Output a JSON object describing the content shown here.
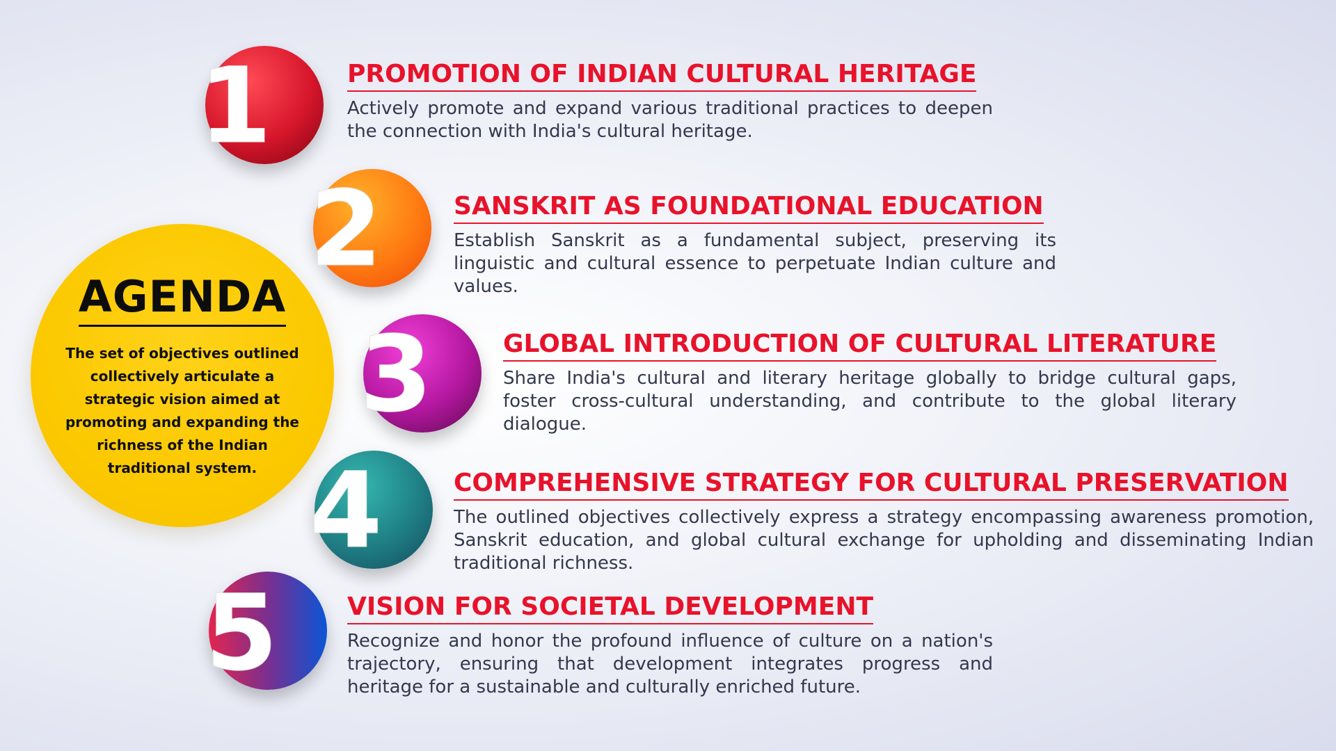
{
  "agenda": {
    "title": "AGENDA",
    "description": "The set of objectives outlined collectively articulate a strategic vision aimed at promoting and expanding the richness of the Indian traditional system."
  },
  "items": [
    {
      "number": "1",
      "heading": "PROMOTION OF INDIAN CULTURAL HERITAGE",
      "body": "Actively promote and expand various traditional practices to deepen the connection with India's cultural heritage.",
      "colors": [
        "#ff4a55",
        "#d6162b",
        "#7e0412"
      ]
    },
    {
      "number": "2",
      "heading": "SANSKRIT AS FOUNDATIONAL EDUCATION",
      "body": "Establish Sanskrit as a fundamental subject, preserving its linguistic and cultural essence to perpetuate Indian culture and values.",
      "colors": [
        "#ffb02a",
        "#ff7b12",
        "#f04a0a"
      ]
    },
    {
      "number": "3",
      "heading": "GLOBAL INTRODUCTION OF CULTURAL LITERATURE",
      "body": "Share India's cultural and literary heritage globally to bridge cultural gaps, foster cross-cultural understanding, and contribute to the global literary dialogue.",
      "colors": [
        "#f23fd8",
        "#b3179f",
        "#5c0a4d"
      ]
    },
    {
      "number": "4",
      "heading": "COMPREHENSIVE STRATEGY FOR CULTURAL PRESERVATION",
      "body": "The outlined objectives collectively express a strategy encompassing awareness promotion, Sanskrit education, and global cultural exchange for upholding and disseminating Indian traditional richness.",
      "colors": [
        "#35b7b0",
        "#1f7f84",
        "#154a5f"
      ]
    },
    {
      "number": "5",
      "heading": "VISION FOR SOCIETAL DEVELOPMENT",
      "body": "Recognize and honor the profound influence of culture on a nation's trajectory, ensuring that development integrates progress and heritage for a sustainable and culturally enriched future.",
      "colors": [
        "#e2264f",
        "#7a2f8f",
        "#0a55d6"
      ]
    }
  ]
}
